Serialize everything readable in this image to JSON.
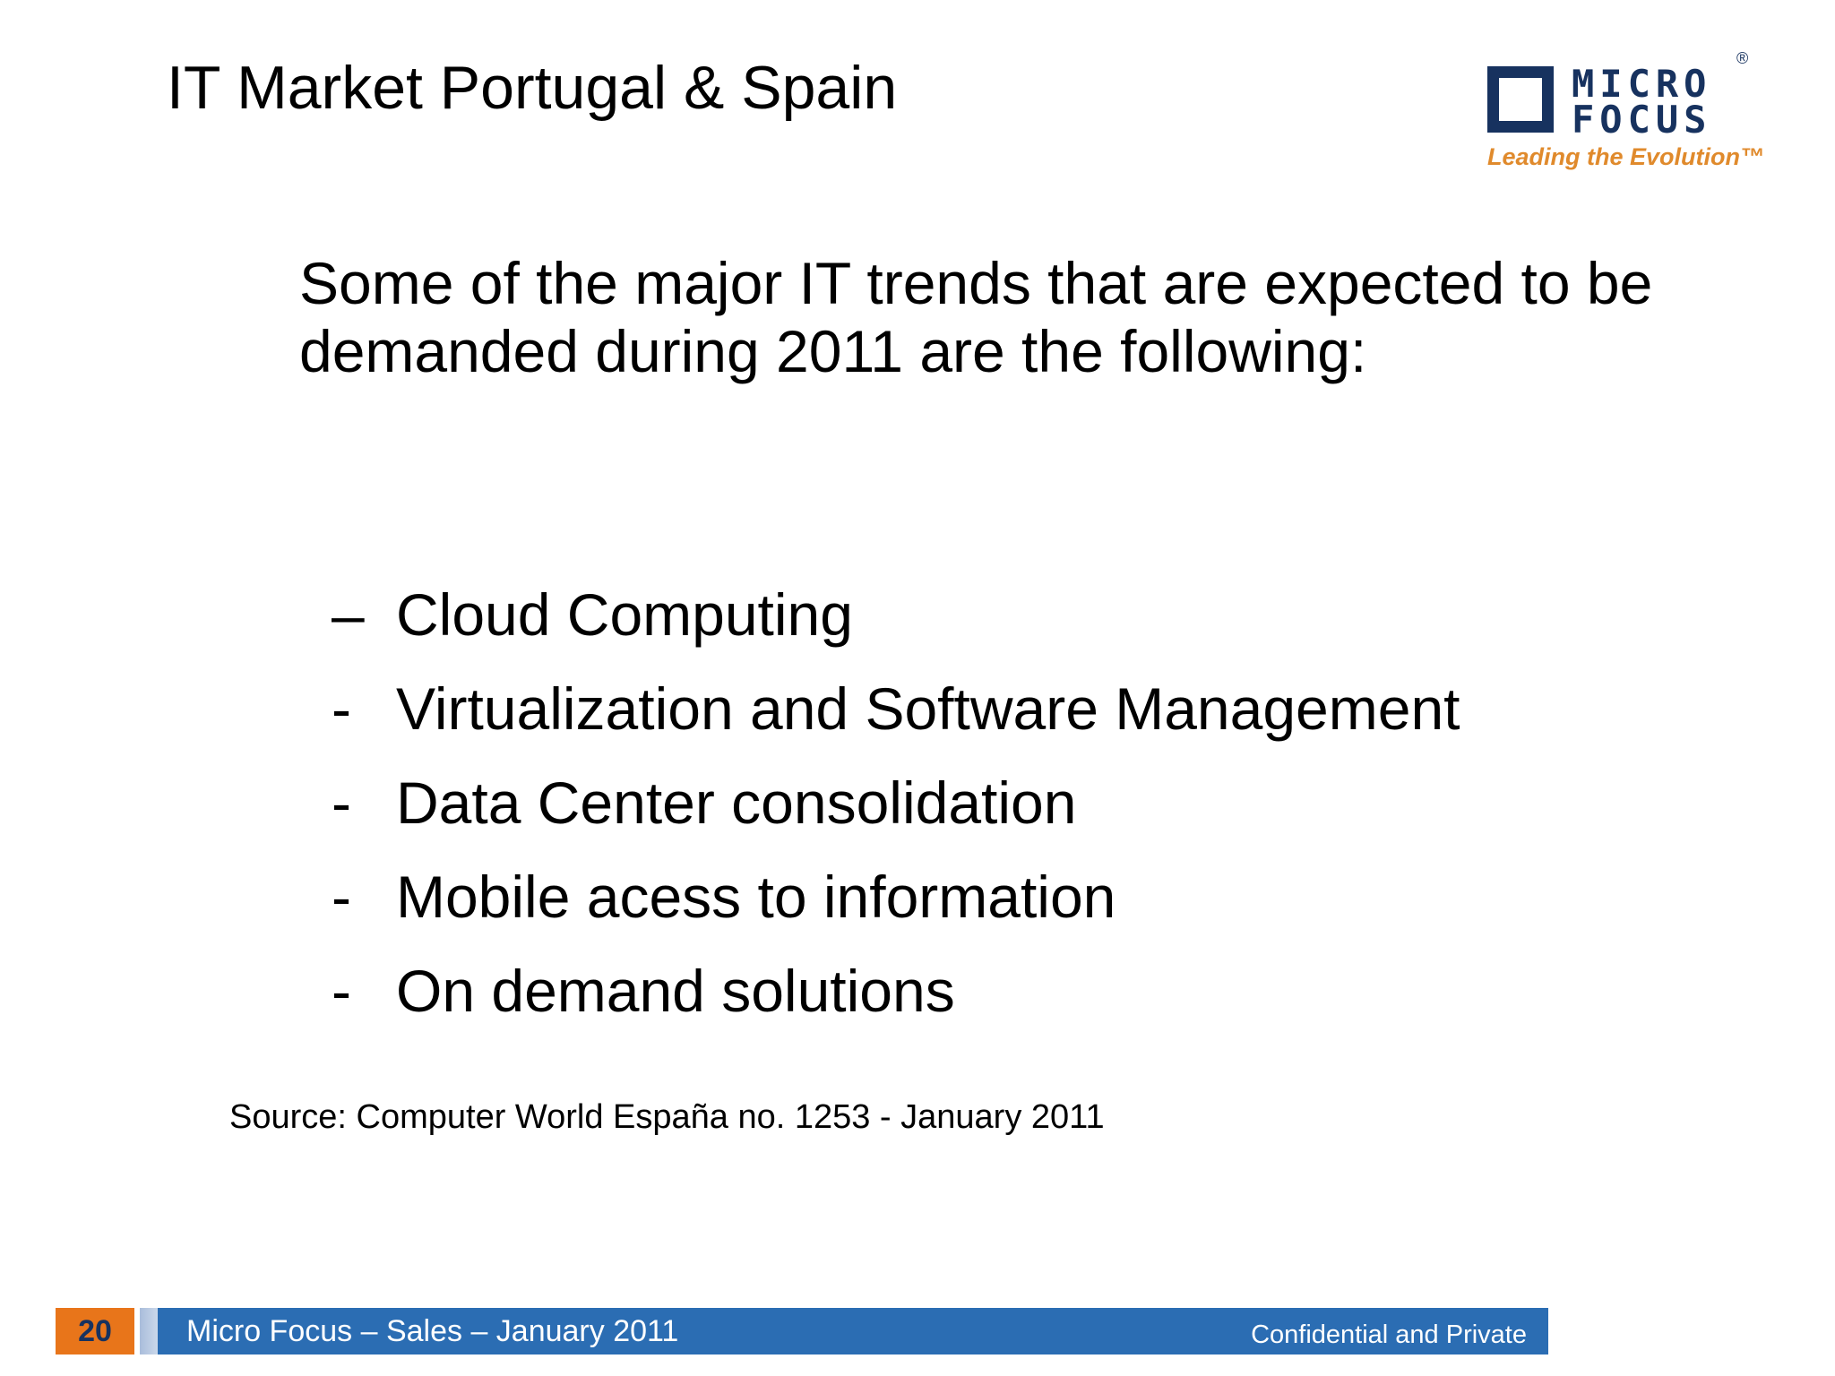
{
  "slide": {
    "title": "IT Market Portugal & Spain",
    "intro": "Some of the major IT trends that are expected to be demanded during 2011 are the following:",
    "bullets": [
      {
        "dash": "–",
        "text": "Cloud Computing"
      },
      {
        "dash": "-",
        "text": "Virtualization and Software Management"
      },
      {
        "dash": "-",
        "text": "Data Center consolidation"
      },
      {
        "dash": "-",
        "text": "Mobile acess to information"
      },
      {
        "dash": "-",
        "text": "On demand solutions"
      }
    ],
    "source": "Source: Computer World España no. 1253 - January 2011"
  },
  "logo": {
    "line1": "MICRO",
    "line2": "FOCUS",
    "registered": "®",
    "tagline": "Leading the Evolution™",
    "brand_color": "#17325f",
    "tagline_color": "#e08a2c"
  },
  "footer": {
    "page_number": "20",
    "left_text": "Micro Focus – Sales – January 2011",
    "right_text": "Confidential and Private",
    "bar_color": "#2b6db3",
    "page_box_color": "#e8751a"
  }
}
